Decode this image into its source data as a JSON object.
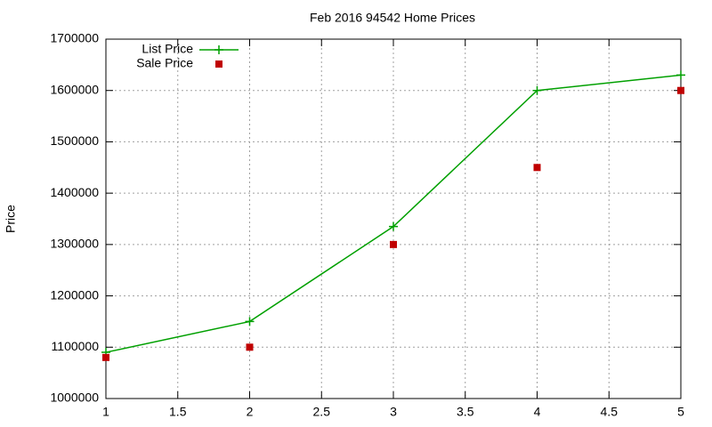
{
  "chart_data": {
    "type": "line",
    "title": "Feb 2016 94542 Home Prices",
    "y_label": "Price",
    "x": [
      1,
      2,
      3,
      4,
      5
    ],
    "series": [
      {
        "name": "List Price",
        "color": "#00a000",
        "style": "linespoints",
        "values": [
          1090000,
          1150000,
          1335000,
          1600000,
          1630000
        ]
      },
      {
        "name": "Sale Price",
        "color": "#c00000",
        "style": "points",
        "values": [
          1080000,
          1100000,
          1300000,
          1450000,
          1600000
        ]
      }
    ],
    "xlim": [
      1,
      5
    ],
    "xticks": [
      1,
      1.5,
      2,
      2.5,
      3,
      3.5,
      4,
      4.5,
      5
    ],
    "ylim": [
      1000000,
      1700000
    ],
    "yticks": [
      1000000,
      1100000,
      1200000,
      1300000,
      1400000,
      1500000,
      1600000,
      1700000
    ],
    "grid": true,
    "legend": "top-left"
  }
}
